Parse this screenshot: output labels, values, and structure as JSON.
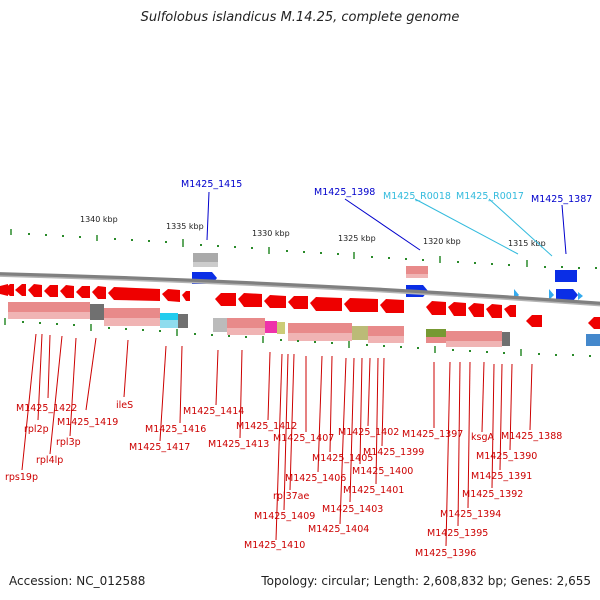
{
  "title": "Sulfolobus islandicus M.14.25, complete genome",
  "footer": {
    "accession": "Accession: NC_012588",
    "topology": "Topology: circular; Length: 2,608,832 bp; Genes: 2,655"
  },
  "colors": {
    "forward_gene": "#ff0000",
    "reverse_gene": "#ff0000",
    "label_blue": "#0000cc",
    "label_cyan": "#33bbdd",
    "label_red": "#cc0000",
    "tick": "#2a8a2a",
    "backbone": "#808080"
  },
  "scale": {
    "ticks": [
      "1340 kbp",
      "1335 kbp",
      "1330 kbp",
      "1325 kbp",
      "1320 kbp",
      "1315 kbp"
    ]
  },
  "top_labels": [
    {
      "text": "M1425_1415",
      "color": "blue"
    },
    {
      "text": "M1425_1398",
      "color": "blue"
    },
    {
      "text": "M1425_R0018",
      "color": "cyan"
    },
    {
      "text": "M1425_R0017",
      "color": "cyan"
    },
    {
      "text": "M1425_1387",
      "color": "blue"
    }
  ],
  "bottom_labels": [
    "M1425_1422",
    "rpl2p",
    "M1425_1419",
    "rpl3p",
    "rpl4lp",
    "rps19p",
    "ileS",
    "M1425_1414",
    "M1425_1416",
    "M1425_1417",
    "M1425_1412",
    "M1425_1413",
    "M1425_1407",
    "M1425_1402",
    "M1425_1397",
    "ksgA",
    "M1425_1388",
    "M1425_1399",
    "M1425_1405",
    "M1425_1390",
    "M1425_1400",
    "M1425_1406",
    "M1425_1391",
    "M1425_1401",
    "rpl37ae",
    "M1425_1392",
    "M1425_1403",
    "M1425_1409",
    "M1425_1394",
    "M1425_1404",
    "M1425_1395",
    "M1425_1410",
    "M1425_1396"
  ]
}
